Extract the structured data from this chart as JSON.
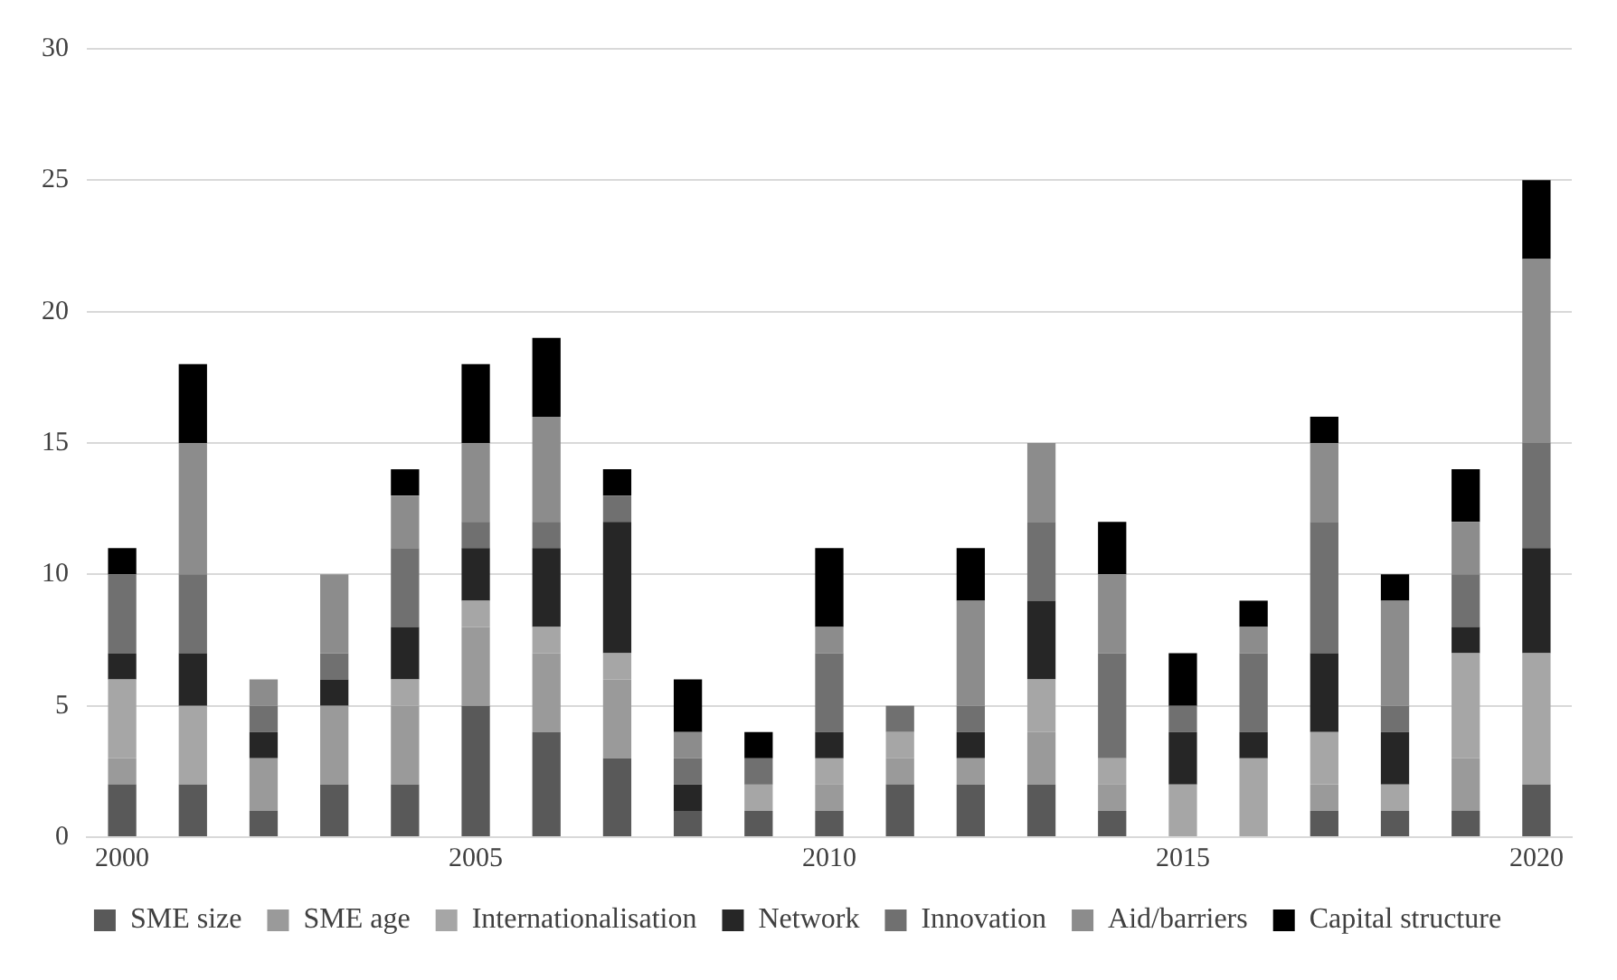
{
  "chart_data": {
    "type": "bar",
    "stacked": true,
    "categories": [
      "2000",
      null,
      null,
      null,
      null,
      "2005",
      null,
      null,
      null,
      null,
      "2010",
      null,
      null,
      null,
      null,
      "2015",
      null,
      null,
      null,
      null,
      "2020"
    ],
    "series": [
      {
        "name": "SME size",
        "color": "#595959",
        "values": [
          2,
          2,
          1,
          2,
          2,
          5,
          4,
          3,
          1,
          1,
          1,
          2,
          2,
          2,
          1,
          0,
          0,
          1,
          1,
          1,
          2
        ]
      },
      {
        "name": "SME age",
        "color": "#9a9a9a",
        "values": [
          1,
          0,
          2,
          3,
          3,
          3,
          3,
          3,
          0,
          0,
          1,
          1,
          1,
          2,
          1,
          0,
          0,
          1,
          0,
          2,
          0
        ]
      },
      {
        "name": "Internationalisation",
        "color": "#a6a6a6",
        "values": [
          3,
          3,
          0,
          0,
          1,
          1,
          1,
          1,
          0,
          1,
          1,
          1,
          0,
          2,
          1,
          2,
          3,
          2,
          1,
          4,
          5
        ]
      },
      {
        "name": "Network",
        "color": "#262626",
        "values": [
          1,
          2,
          1,
          1,
          2,
          2,
          3,
          5,
          1,
          0,
          1,
          0,
          1,
          3,
          0,
          2,
          1,
          3,
          2,
          1,
          4
        ]
      },
      {
        "name": "Innovation",
        "color": "#707070",
        "values": [
          3,
          3,
          1,
          1,
          3,
          1,
          1,
          1,
          1,
          1,
          3,
          1,
          1,
          3,
          4,
          1,
          3,
          5,
          1,
          2,
          4
        ]
      },
      {
        "name": "Aid/barriers",
        "color": "#8c8c8c",
        "values": [
          0,
          5,
          1,
          3,
          2,
          3,
          4,
          0,
          1,
          0,
          1,
          0,
          4,
          3,
          3,
          0,
          1,
          3,
          4,
          2,
          7
        ]
      },
      {
        "name": "Capital structure",
        "color": "#000000",
        "values": [
          1,
          3,
          0,
          0,
          1,
          3,
          3,
          1,
          2,
          1,
          3,
          0,
          2,
          0,
          2,
          2,
          1,
          1,
          1,
          2,
          3
        ]
      }
    ],
    "ylim": [
      0,
      30
    ],
    "yticks": [
      0,
      5,
      10,
      15,
      20,
      25,
      30
    ],
    "grid": "y",
    "legend": "bottom"
  }
}
